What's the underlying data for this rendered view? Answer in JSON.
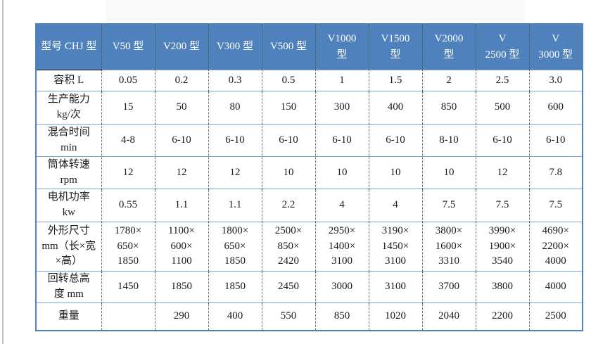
{
  "colors": {
    "header_bg": "#4f81bd",
    "header_text": "#ffffff",
    "row_line": "#7da1d1",
    "outer_border": "#4f81bd",
    "dotted_divider": "#4a4a4a",
    "cell_text": "#1a1a1a"
  },
  "table": {
    "columns": [
      "型号 CHJ 型",
      "V50 型",
      "V200 型",
      "V300 型",
      "V500 型",
      "V1000\n型",
      "V1500\n型",
      "V2000\n型",
      "V\n2500 型",
      "V\n3000 型"
    ],
    "rows": [
      {
        "label": "容积 L",
        "values": [
          "0.05",
          "0.2",
          "0.3",
          "0.5",
          "1",
          "1.5",
          "2",
          "2.5",
          "3.0"
        ]
      },
      {
        "label": "生产能力\nkg/次",
        "values": [
          "15",
          "50",
          "80",
          "150",
          "300",
          "400",
          "850",
          "500",
          "600"
        ]
      },
      {
        "label": "混合时间\nmin",
        "values": [
          "4-8",
          "6-10",
          "6-10",
          "6-10",
          "6-10",
          "6-10",
          "8-10",
          "6-10",
          "6-10"
        ]
      },
      {
        "label": "筒体转速\nrpm",
        "values": [
          "12",
          "12",
          "12",
          "10",
          "10",
          "10",
          "10",
          "12",
          "7.8"
        ]
      },
      {
        "label": "电机功率\nkw",
        "values": [
          "0.55",
          "1.1",
          "1.1",
          "2.2",
          "4",
          "4",
          "7.5",
          "7.5",
          "7.5"
        ]
      },
      {
        "label": "外形尺寸\nmm（长×宽\n×高）",
        "values": [
          "1780×\n650×\n1850",
          "1100×\n600×\n1100",
          "1800×\n650×\n1850",
          "2500×\n850×\n2420",
          "2950×\n1400×\n3100",
          "3190×\n1450×\n3100",
          "3800×\n1600×\n3310",
          "3990×\n1900×\n3540",
          "4690×\n2200×\n4000"
        ]
      },
      {
        "label": "回转总高\n度 mm",
        "values": [
          "1450",
          "1850",
          "1850",
          "2450",
          "3000",
          "3100",
          "3700",
          "3800",
          "4000"
        ]
      },
      {
        "label": "重量",
        "values": [
          "",
          "290",
          "400",
          "550",
          "850",
          "1020",
          "2040",
          "2200",
          "2500"
        ]
      }
    ]
  }
}
